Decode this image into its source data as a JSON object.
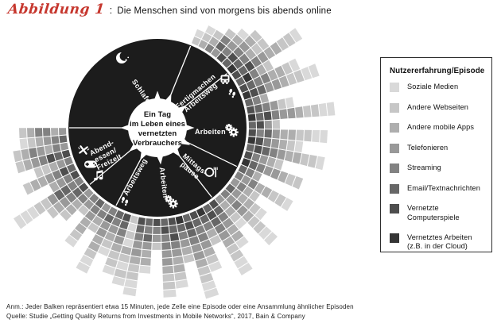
{
  "title": {
    "figure_label": "Abbildung 1",
    "separator": ":",
    "text": "Die Menschen sind von morgens bis abends online"
  },
  "legend": {
    "title": "Nutzererfahrung/Episode",
    "items": [
      {
        "label": "Soziale Medien",
        "color": "#d9d9d9"
      },
      {
        "label": "Andere Webseiten",
        "color": "#c6c6c6"
      },
      {
        "label": "Andere mobile Apps",
        "color": "#aeaeae"
      },
      {
        "label": "Telefonieren",
        "color": "#999999"
      },
      {
        "label": "Streaming",
        "color": "#828282"
      },
      {
        "label": "Email/Textnachrichten",
        "color": "#676767"
      },
      {
        "label": "Vernetzte Computerspiele",
        "color": "#4e4e4e"
      },
      {
        "label": "Vernetztes Arbeiten",
        "label2": "(z.B. in der Cloud)",
        "color": "#353535"
      }
    ]
  },
  "chart_data": {
    "type": "radial-bar",
    "center": [
      "Ein Tag",
      "im Leben eines",
      "vernetzten",
      "Verbrauchers"
    ],
    "disk_color": "#1c1c1c",
    "palette": [
      "#d9d9d9",
      "#c6c6c6",
      "#aeaeae",
      "#999999",
      "#828282",
      "#676767",
      "#4e4e4e",
      "#353535"
    ],
    "palette_names": [
      "Soziale Medien",
      "Andere Webseiten",
      "Andere mobile Apps",
      "Telefonieren",
      "Streaming",
      "Email/Textnachrichten",
      "Vernetzte Computerspiele",
      "Vernetztes Arbeiten"
    ],
    "segments": [
      {
        "id": "schlafen",
        "lines": [
          "Schlafen"
        ],
        "start": 270,
        "end": 382,
        "icons": [
          "moon"
        ]
      },
      {
        "id": "fertigmachen-arbeitsweg",
        "lines": [
          "Fertigmachen",
          "Arbeitsweg"
        ],
        "start": 22,
        "end": 52,
        "icons": [
          "tram",
          "footprints"
        ]
      },
      {
        "id": "arbeiten-vormittag",
        "lines": [
          "Arbeiten"
        ],
        "start": 52,
        "end": 116,
        "icons": [
          "gears"
        ]
      },
      {
        "id": "mittagspause",
        "lines": [
          "Mittags-",
          "pause"
        ],
        "start": 116,
        "end": 142,
        "icons": [
          "plate-fork"
        ]
      },
      {
        "id": "arbeiten-nachmittag",
        "lines": [
          "Arbeiten"
        ],
        "start": 142,
        "end": 208,
        "icons": [
          "gears"
        ]
      },
      {
        "id": "arbeitsweg",
        "lines": [
          "Arbeitsweg"
        ],
        "start": 208,
        "end": 230,
        "icons": [
          "footprints"
        ]
      },
      {
        "id": "abendessen-freizeit",
        "lines": [
          "Abend-",
          "essen/",
          "Freizeit"
        ],
        "start": 230,
        "end": 270,
        "icons": [
          "utensils",
          "gamepad",
          "music-note"
        ]
      }
    ],
    "bar_unit_minutes": 15,
    "bars": [
      {
        "a": 24.0,
        "c": [
          1,
          0
        ]
      },
      {
        "a": 28.6,
        "c": [
          2,
          1,
          0
        ]
      },
      {
        "a": 33.2,
        "c": [
          4,
          2,
          1
        ]
      },
      {
        "a": 37.8,
        "c": [
          3,
          5,
          4,
          1
        ]
      },
      {
        "a": 42.4,
        "c": [
          6,
          4,
          3,
          2,
          0
        ]
      },
      {
        "a": 47.0,
        "c": [
          5,
          6,
          4,
          3,
          2,
          1
        ]
      },
      {
        "a": 51.6,
        "c": [
          7,
          5,
          4,
          2,
          1,
          1
        ]
      },
      {
        "a": 56.2,
        "c": [
          6,
          5,
          6,
          4,
          3,
          2,
          2,
          1,
          1,
          0
        ]
      },
      {
        "a": 60.8,
        "c": [
          5,
          7,
          4,
          2,
          1
        ]
      },
      {
        "a": 65.4,
        "c": [
          6,
          5,
          4,
          4,
          2,
          2,
          1,
          0
        ]
      },
      {
        "a": 70.0,
        "c": [
          7,
          6,
          5,
          3,
          3,
          2,
          1,
          1,
          0,
          0
        ]
      },
      {
        "a": 74.6,
        "c": [
          5,
          4,
          2
        ]
      },
      {
        "a": 79.2,
        "c": [
          6,
          5,
          4,
          3,
          1,
          0
        ]
      },
      {
        "a": 83.8,
        "c": [
          7,
          5,
          6,
          4,
          3,
          3,
          2,
          1,
          1,
          0,
          0
        ]
      },
      {
        "a": 88.4,
        "c": [
          5,
          6,
          3,
          1
        ]
      },
      {
        "a": 93.0,
        "c": [
          6,
          4,
          5,
          3,
          2,
          2,
          1,
          1,
          0,
          0
        ]
      },
      {
        "a": 97.6,
        "c": [
          7,
          6,
          4,
          3,
          2,
          1,
          0
        ]
      },
      {
        "a": 102.2,
        "c": [
          5,
          6,
          5,
          4,
          3,
          2,
          2,
          1,
          1,
          0
        ]
      },
      {
        "a": 106.8,
        "c": [
          6,
          4,
          3,
          2,
          1
        ]
      },
      {
        "a": 111.4,
        "c": [
          7,
          5,
          4,
          3,
          3,
          2,
          1,
          1
        ]
      },
      {
        "a": 116.0,
        "c": [
          5,
          4,
          2
        ]
      },
      {
        "a": 120.6,
        "c": [
          4,
          3,
          4,
          2,
          2,
          1,
          1,
          0
        ]
      },
      {
        "a": 125.2,
        "c": [
          3,
          4,
          2,
          1
        ]
      },
      {
        "a": 129.8,
        "c": [
          5,
          3,
          2,
          2,
          1,
          0
        ]
      },
      {
        "a": 134.4,
        "c": [
          4,
          3,
          4,
          3,
          2,
          1,
          1,
          0,
          0
        ]
      },
      {
        "a": 139.0,
        "c": [
          3,
          2,
          2,
          1,
          0
        ]
      },
      {
        "a": 143.6,
        "c": [
          6,
          5,
          4,
          3,
          2,
          2,
          0
        ]
      },
      {
        "a": 148.2,
        "c": [
          5,
          6,
          5,
          4,
          3,
          2,
          1,
          1,
          0,
          0
        ]
      },
      {
        "a": 152.8,
        "c": [
          7,
          5,
          4,
          2,
          1
        ]
      },
      {
        "a": 157.4,
        "c": [
          6,
          5,
          4,
          4,
          3,
          2,
          1,
          0
        ]
      },
      {
        "a": 162.0,
        "c": [
          5,
          6,
          5,
          4,
          3,
          3,
          2,
          1,
          1,
          0,
          0
        ]
      },
      {
        "a": 166.6,
        "c": [
          7,
          5,
          4,
          3,
          2,
          1
        ]
      },
      {
        "a": 171.2,
        "c": [
          6,
          5,
          6,
          4,
          3,
          2,
          2,
          1,
          0
        ]
      },
      {
        "a": 175.8,
        "c": [
          5,
          6,
          4,
          4,
          3,
          3,
          2,
          1,
          1,
          0
        ]
      },
      {
        "a": 180.4,
        "c": [
          6,
          4,
          3,
          1
        ]
      },
      {
        "a": 185.0,
        "c": [
          5,
          4,
          5,
          3,
          2,
          2,
          0
        ]
      },
      {
        "a": 189.6,
        "c": [
          6,
          5,
          4,
          3,
          3,
          2,
          1,
          1,
          0,
          0
        ]
      },
      {
        "a": 194.2,
        "c": [
          1,
          0,
          1,
          0,
          2,
          1,
          0,
          1,
          0
        ]
      },
      {
        "a": 198.8,
        "c": [
          6,
          5,
          4,
          3,
          2,
          1,
          1,
          0
        ]
      },
      {
        "a": 203.4,
        "c": [
          5,
          4,
          3,
          2,
          1,
          0
        ]
      },
      {
        "a": 208.0,
        "c": [
          4,
          5,
          3,
          3,
          2,
          2,
          1,
          0,
          0
        ]
      },
      {
        "a": 212.6,
        "c": [
          3,
          4,
          2,
          1
        ]
      },
      {
        "a": 217.2,
        "c": [
          5,
          4,
          3,
          2,
          2,
          1,
          0
        ]
      },
      {
        "a": 221.8,
        "c": [
          4,
          3,
          1
        ]
      },
      {
        "a": 226.4,
        "c": [
          3,
          4,
          2,
          2,
          1
        ]
      },
      {
        "a": 231.0,
        "c": [
          6,
          5,
          4,
          3,
          2,
          1
        ]
      },
      {
        "a": 235.6,
        "c": [
          4,
          4,
          5,
          5,
          3,
          1,
          1,
          0,
          0,
          0
        ]
      },
      {
        "a": 240.2,
        "c": [
          6,
          4,
          3,
          2
        ]
      },
      {
        "a": 244.8,
        "c": [
          5,
          6,
          4,
          3,
          2,
          2,
          1
        ]
      },
      {
        "a": 249.4,
        "c": [
          4,
          3,
          2,
          1,
          1
        ]
      },
      {
        "a": 254.0,
        "c": [
          6,
          5,
          6,
          4,
          3,
          2,
          1
        ]
      },
      {
        "a": 258.6,
        "c": [
          3,
          4,
          2,
          3,
          4,
          2,
          1
        ]
      },
      {
        "a": 263.2,
        "c": [
          5,
          4,
          3,
          2,
          1,
          0
        ]
      },
      {
        "a": 267.8,
        "c": [
          3,
          2,
          4,
          4,
          2,
          1
        ]
      }
    ]
  },
  "footnotes": {
    "note": "Anm.: Jeder Balken repräsentiert etwa 15 Minuten, jede Zelle eine Episode oder eine Ansammlung ähnlicher Episoden",
    "source": "Quelle: Studie „Getting Quality Returns from Investments in Mobile Networks“, 2017, Bain & Company"
  }
}
